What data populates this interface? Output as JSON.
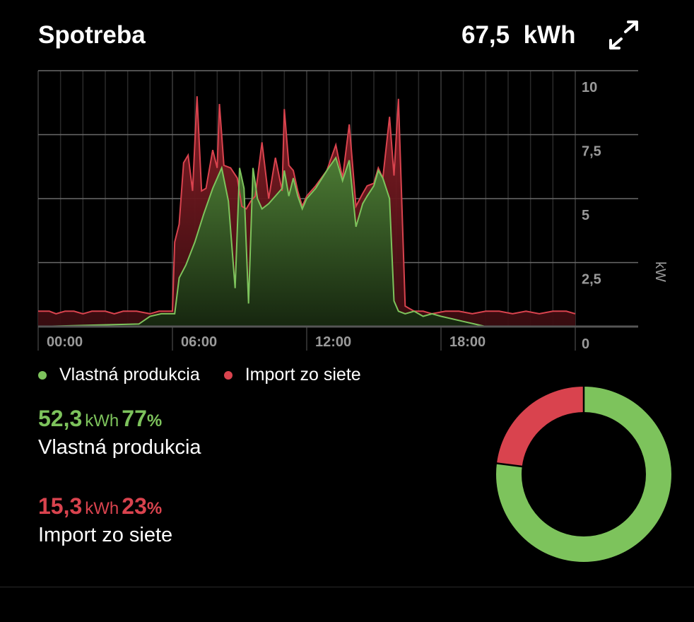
{
  "header": {
    "title": "Spotreba",
    "total_value": "67,5",
    "total_unit": "kWh"
  },
  "icons": {
    "expand": "expand-arrows-icon"
  },
  "colors": {
    "production": "#7dc35c",
    "import": "#d9434e",
    "grid": "#555555"
  },
  "chart_data": {
    "type": "area",
    "x_unit": "hour",
    "y_unit": "kW",
    "ylim": [
      0,
      10
    ],
    "y_ticks": [
      "10",
      "7,5",
      "5",
      "2,5",
      "0"
    ],
    "y_tick_values": [
      10,
      7.5,
      5,
      2.5,
      0
    ],
    "x_ticks": [
      "00:00",
      "06:00",
      "12:00",
      "18:00"
    ],
    "x_tick_values": [
      0,
      6,
      12,
      18
    ],
    "ylabel": "kW",
    "legend_position": "bottom-left",
    "series": [
      {
        "name": "Import zo siete",
        "role": "consumption",
        "x": [
          0,
          0.5,
          0.8,
          1.2,
          1.6,
          2.0,
          2.4,
          3.0,
          3.4,
          3.8,
          4.4,
          5.0,
          5.4,
          5.9,
          6.0,
          6.1,
          6.3,
          6.5,
          6.7,
          6.9,
          7.1,
          7.3,
          7.5,
          7.8,
          8.0,
          8.1,
          8.3,
          8.6,
          8.9,
          9.1,
          9.3,
          9.5,
          9.7,
          10.0,
          10.3,
          10.6,
          10.9,
          11.0,
          11.2,
          11.4,
          11.6,
          11.8,
          12.0,
          12.4,
          12.9,
          13.3,
          13.6,
          13.9,
          14.2,
          14.5,
          14.7,
          15.0,
          15.2,
          15.4,
          15.7,
          15.9,
          16.1,
          16.4,
          16.6,
          16.8,
          17.2,
          17.6,
          18.2,
          18.8,
          19.4,
          20.0,
          20.6,
          21.2,
          21.8,
          22.4,
          23.0,
          23.6,
          24.0
        ],
        "y": [
          0.6,
          0.6,
          0.5,
          0.6,
          0.6,
          0.5,
          0.6,
          0.6,
          0.5,
          0.6,
          0.6,
          0.5,
          0.6,
          0.6,
          0.6,
          3.3,
          4.0,
          6.4,
          6.7,
          5.3,
          9.0,
          5.3,
          5.4,
          6.9,
          6.2,
          8.7,
          6.3,
          6.2,
          5.8,
          4.7,
          4.6,
          4.9,
          5.1,
          7.2,
          5.0,
          6.6,
          5.3,
          8.5,
          6.3,
          6.1,
          5.3,
          4.7,
          5.1,
          5.5,
          6.1,
          7.1,
          5.8,
          7.9,
          4.7,
          5.2,
          5.5,
          5.6,
          6.2,
          5.8,
          8.2,
          5.9,
          8.9,
          0.8,
          0.7,
          0.6,
          0.6,
          0.5,
          0.6,
          0.6,
          0.5,
          0.6,
          0.6,
          0.5,
          0.6,
          0.5,
          0.6,
          0.6,
          0.5
        ]
      },
      {
        "name": "Vlastná produkcia",
        "role": "production",
        "x": [
          0,
          4.5,
          5.0,
          5.5,
          5.9,
          6.1,
          6.3,
          6.6,
          7.0,
          7.4,
          7.8,
          8.2,
          8.5,
          8.8,
          9.0,
          9.2,
          9.4,
          9.6,
          9.8,
          10.0,
          10.3,
          10.6,
          10.9,
          11.0,
          11.2,
          11.4,
          11.6,
          11.8,
          12.0,
          12.4,
          12.9,
          13.3,
          13.6,
          13.9,
          14.2,
          14.5,
          14.7,
          15.0,
          15.2,
          15.4,
          15.7,
          15.9,
          16.1,
          16.4,
          16.8,
          17.2,
          17.6,
          18.0,
          18.5,
          19.0,
          19.5,
          20.0,
          24.0
        ],
        "y": [
          0,
          0.1,
          0.4,
          0.5,
          0.5,
          0.5,
          1.9,
          2.4,
          3.3,
          4.4,
          5.4,
          6.2,
          4.9,
          1.5,
          6.2,
          5.4,
          0.9,
          6.2,
          5.0,
          4.6,
          4.8,
          5.1,
          5.4,
          6.1,
          5.1,
          5.8,
          5.1,
          4.6,
          5.0,
          5.4,
          6.1,
          6.6,
          5.7,
          6.5,
          3.9,
          4.8,
          5.1,
          5.5,
          6.1,
          5.8,
          5.0,
          1.0,
          0.6,
          0.5,
          0.6,
          0.4,
          0.5,
          0.4,
          0.3,
          0.2,
          0.1,
          0,
          0
        ]
      }
    ]
  },
  "legend": [
    {
      "label": "Vlastná produkcia",
      "color": "#7dc35c"
    },
    {
      "label": "Import zo siete",
      "color": "#d9434e"
    }
  ],
  "stats": {
    "production": {
      "value": "52,3",
      "unit": "kWh",
      "percent": "77",
      "pct_sign": "%",
      "label": "Vlastná produkcia"
    },
    "import": {
      "value": "15,3",
      "unit": "kWh",
      "percent": "23",
      "pct_sign": "%",
      "label": "Import zo siete"
    }
  },
  "donut": {
    "production_fraction": 0.77,
    "import_fraction": 0.23
  }
}
